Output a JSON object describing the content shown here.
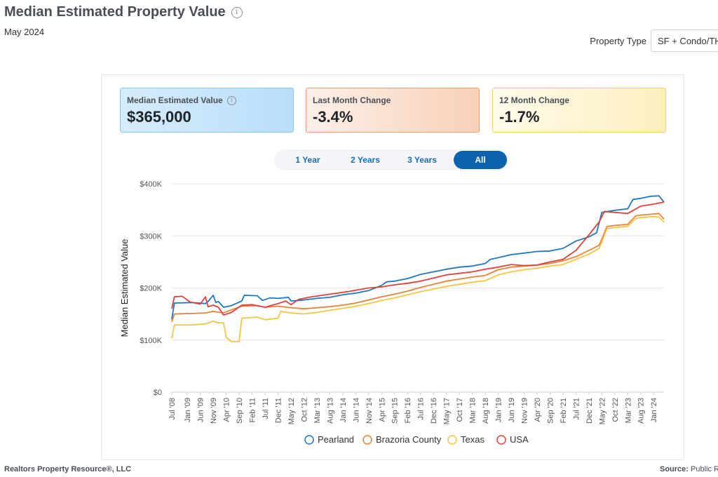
{
  "header": {
    "title": "Median Estimated Property Value",
    "info_icon": "info-icon",
    "date": "May 2024",
    "property_type_label": "Property Type",
    "property_type_value": "SF + Condo/TH"
  },
  "kpis": [
    {
      "label": "Median Estimated Value",
      "value": "$365,000",
      "color": "#b9defa"
    },
    {
      "label": "Last Month Change",
      "value": "-3.4%",
      "color": "#f8d0b8"
    },
    {
      "label": "12 Month Change",
      "value": "-1.7%",
      "color": "#fdefc1"
    }
  ],
  "range_tabs": [
    {
      "label": "1 Year",
      "active": false
    },
    {
      "label": "2 Years",
      "active": false
    },
    {
      "label": "3 Years",
      "active": false
    },
    {
      "label": "All",
      "active": true
    }
  ],
  "footer": {
    "left": "Realtors Property Resource®, LLC",
    "right_label": "Source:",
    "right_value": "Public Re"
  },
  "chart_data": {
    "type": "line",
    "ylabel": "Median Estimated Value",
    "xlabel": "",
    "ylim": [
      0,
      400000
    ],
    "y_ticks": [
      0,
      100000,
      200000,
      300000,
      400000
    ],
    "y_tick_labels": [
      "$0",
      "$100K",
      "$200K",
      "$300K",
      "$400K"
    ],
    "x_start": "2008-07",
    "x_end": "2024-05",
    "x_tick_labels": [
      "Jul '08",
      "Jan '09",
      "Jun '09",
      "Nov '09",
      "Apr '10",
      "Sep '10",
      "Feb '11",
      "Jul '11",
      "Dec '11",
      "May '12",
      "Oct '12",
      "Mar '13",
      "Aug '13",
      "Jan '14",
      "Jun '14",
      "Nov '14",
      "Apr '15",
      "Sep '15",
      "Feb '16",
      "Jul '16",
      "Dec '16",
      "May '17",
      "Oct '17",
      "Mar '18",
      "Aug '18",
      "Jan '19",
      "Jun '19",
      "Nov '19",
      "Apr '20",
      "Sep '20",
      "Feb '21",
      "Jul '21",
      "Dec '21",
      "May '22",
      "Oct '22",
      "Mar '23",
      "Aug '23",
      "Jan '24"
    ],
    "grid": true,
    "legend_position": "bottom",
    "series": [
      {
        "name": "Pearland",
        "color": "#1f77c4",
        "points": [
          [
            "2008-07",
            140000
          ],
          [
            "2008-08",
            171000
          ],
          [
            "2009-03",
            172000
          ],
          [
            "2009-08",
            170000
          ],
          [
            "2009-09",
            174000
          ],
          [
            "2009-11",
            186000
          ],
          [
            "2009-12",
            172000
          ],
          [
            "2010-01",
            174000
          ],
          [
            "2010-03",
            163000
          ],
          [
            "2010-06",
            166000
          ],
          [
            "2010-10",
            175000
          ],
          [
            "2010-11",
            186000
          ],
          [
            "2011-04",
            185000
          ],
          [
            "2011-06",
            176000
          ],
          [
            "2011-09",
            181000
          ],
          [
            "2011-12",
            180000
          ],
          [
            "2012-04",
            182000
          ],
          [
            "2012-05",
            175000
          ],
          [
            "2012-08",
            176000
          ],
          [
            "2012-10",
            177000
          ],
          [
            "2013-03",
            180000
          ],
          [
            "2013-08",
            182000
          ],
          [
            "2014-01",
            187000
          ],
          [
            "2014-06",
            190000
          ],
          [
            "2014-11",
            195000
          ],
          [
            "2015-04",
            205000
          ],
          [
            "2015-06",
            212000
          ],
          [
            "2015-09",
            213000
          ],
          [
            "2016-02",
            218000
          ],
          [
            "2016-07",
            226000
          ],
          [
            "2016-12",
            231000
          ],
          [
            "2017-05",
            236000
          ],
          [
            "2017-10",
            240000
          ],
          [
            "2018-03",
            242000
          ],
          [
            "2018-08",
            247000
          ],
          [
            "2018-10",
            255000
          ],
          [
            "2019-01",
            258000
          ],
          [
            "2019-06",
            264000
          ],
          [
            "2019-11",
            267000
          ],
          [
            "2020-04",
            270000
          ],
          [
            "2020-09",
            271000
          ],
          [
            "2021-02",
            276000
          ],
          [
            "2021-07",
            290000
          ],
          [
            "2021-12",
            298000
          ],
          [
            "2022-03",
            306000
          ],
          [
            "2022-05",
            345000
          ],
          [
            "2022-10",
            349000
          ],
          [
            "2023-03",
            352000
          ],
          [
            "2023-05",
            370000
          ],
          [
            "2023-08",
            372000
          ],
          [
            "2023-12",
            376000
          ],
          [
            "2024-03",
            377000
          ],
          [
            "2024-05",
            365000
          ]
        ]
      },
      {
        "name": "Brazoria County",
        "color": "#e8833a",
        "points": [
          [
            "2008-07",
            135000
          ],
          [
            "2008-08",
            150000
          ],
          [
            "2009-03",
            151000
          ],
          [
            "2009-08",
            152000
          ],
          [
            "2009-11",
            155000
          ],
          [
            "2010-03",
            152000
          ],
          [
            "2010-06",
            158000
          ],
          [
            "2010-10",
            165000
          ],
          [
            "2011-04",
            166000
          ],
          [
            "2011-07",
            163000
          ],
          [
            "2011-12",
            165000
          ],
          [
            "2012-05",
            162000
          ],
          [
            "2012-10",
            160000
          ],
          [
            "2013-03",
            162000
          ],
          [
            "2013-08",
            164000
          ],
          [
            "2014-01",
            167000
          ],
          [
            "2014-06",
            171000
          ],
          [
            "2014-11",
            177000
          ],
          [
            "2015-04",
            183000
          ],
          [
            "2015-09",
            188000
          ],
          [
            "2016-02",
            194000
          ],
          [
            "2016-07",
            201000
          ],
          [
            "2016-12",
            207000
          ],
          [
            "2017-05",
            213000
          ],
          [
            "2017-10",
            217000
          ],
          [
            "2018-03",
            221000
          ],
          [
            "2018-08",
            224000
          ],
          [
            "2019-01",
            235000
          ],
          [
            "2019-06",
            240000
          ],
          [
            "2019-11",
            242000
          ],
          [
            "2020-04",
            244000
          ],
          [
            "2020-09",
            247000
          ],
          [
            "2021-02",
            252000
          ],
          [
            "2021-07",
            260000
          ],
          [
            "2021-12",
            272000
          ],
          [
            "2022-04",
            282000
          ],
          [
            "2022-07",
            318000
          ],
          [
            "2022-10",
            320000
          ],
          [
            "2023-03",
            322000
          ],
          [
            "2023-06",
            338000
          ],
          [
            "2023-08",
            340000
          ],
          [
            "2024-01",
            342000
          ],
          [
            "2024-03",
            343000
          ],
          [
            "2024-05",
            332000
          ]
        ]
      },
      {
        "name": "Texas",
        "color": "#f5c542",
        "points": [
          [
            "2008-07",
            103000
          ],
          [
            "2008-08",
            129000
          ],
          [
            "2009-03",
            129000
          ],
          [
            "2009-08",
            131000
          ],
          [
            "2009-11",
            136000
          ],
          [
            "2010-01",
            133000
          ],
          [
            "2010-03",
            133000
          ],
          [
            "2010-04",
            105000
          ],
          [
            "2010-06",
            97000
          ],
          [
            "2010-09",
            97000
          ],
          [
            "2010-10",
            142000
          ],
          [
            "2011-04",
            144000
          ],
          [
            "2011-07",
            139000
          ],
          [
            "2011-12",
            142000
          ],
          [
            "2012-01",
            155000
          ],
          [
            "2012-05",
            152000
          ],
          [
            "2012-10",
            150000
          ],
          [
            "2013-03",
            153000
          ],
          [
            "2013-08",
            157000
          ],
          [
            "2014-01",
            161000
          ],
          [
            "2014-06",
            165000
          ],
          [
            "2014-11",
            170000
          ],
          [
            "2015-04",
            176000
          ],
          [
            "2015-09",
            181000
          ],
          [
            "2016-02",
            187000
          ],
          [
            "2016-07",
            193000
          ],
          [
            "2016-12",
            198000
          ],
          [
            "2017-05",
            203000
          ],
          [
            "2017-10",
            207000
          ],
          [
            "2018-03",
            211000
          ],
          [
            "2018-08",
            214000
          ],
          [
            "2019-01",
            225000
          ],
          [
            "2019-06",
            231000
          ],
          [
            "2019-11",
            235000
          ],
          [
            "2020-04",
            238000
          ],
          [
            "2020-09",
            242000
          ],
          [
            "2021-02",
            245000
          ],
          [
            "2021-07",
            255000
          ],
          [
            "2021-12",
            265000
          ],
          [
            "2022-04",
            276000
          ],
          [
            "2022-07",
            314000
          ],
          [
            "2022-10",
            316000
          ],
          [
            "2023-03",
            318000
          ],
          [
            "2023-06",
            333000
          ],
          [
            "2023-08",
            335000
          ],
          [
            "2024-01",
            337000
          ],
          [
            "2024-03",
            336000
          ],
          [
            "2024-05",
            326000
          ]
        ]
      },
      {
        "name": "USA",
        "color": "#e0413a",
        "points": [
          [
            "2008-07",
            160000
          ],
          [
            "2008-08",
            183000
          ],
          [
            "2008-11",
            184000
          ],
          [
            "2009-02",
            173000
          ],
          [
            "2009-06",
            169000
          ],
          [
            "2009-08",
            183000
          ],
          [
            "2009-09",
            164000
          ],
          [
            "2009-11",
            167000
          ],
          [
            "2010-01",
            163000
          ],
          [
            "2010-03",
            148000
          ],
          [
            "2010-06",
            153000
          ],
          [
            "2010-10",
            167000
          ],
          [
            "2011-02",
            168000
          ],
          [
            "2011-07",
            163000
          ],
          [
            "2011-12",
            170000
          ],
          [
            "2012-03",
            175000
          ],
          [
            "2012-05",
            168000
          ],
          [
            "2012-08",
            178000
          ],
          [
            "2013-01",
            183000
          ],
          [
            "2013-08",
            188000
          ],
          [
            "2014-03",
            193000
          ],
          [
            "2014-11",
            200000
          ],
          [
            "2015-04",
            202000
          ],
          [
            "2015-09",
            206000
          ],
          [
            "2016-02",
            209000
          ],
          [
            "2016-07",
            213000
          ],
          [
            "2016-12",
            219000
          ],
          [
            "2017-05",
            225000
          ],
          [
            "2017-10",
            228000
          ],
          [
            "2018-03",
            231000
          ],
          [
            "2018-08",
            236000
          ],
          [
            "2019-01",
            240000
          ],
          [
            "2019-06",
            245000
          ],
          [
            "2019-11",
            243000
          ],
          [
            "2020-04",
            244000
          ],
          [
            "2020-09",
            250000
          ],
          [
            "2021-02",
            255000
          ],
          [
            "2021-07",
            272000
          ],
          [
            "2021-12",
            302000
          ],
          [
            "2022-04",
            327000
          ],
          [
            "2022-06",
            347000
          ],
          [
            "2022-10",
            345000
          ],
          [
            "2023-03",
            343000
          ],
          [
            "2023-08",
            357000
          ],
          [
            "2024-01",
            361000
          ],
          [
            "2024-05",
            365000
          ]
        ]
      }
    ]
  }
}
